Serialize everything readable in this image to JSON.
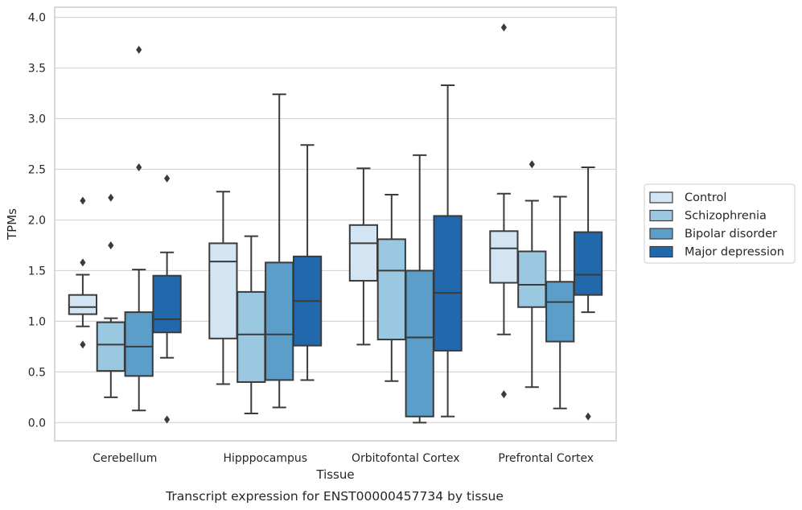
{
  "caption": "Transcript expression for ENST00000457734 by tissue",
  "chart_data": {
    "type": "box",
    "xlabel": "Tissue",
    "ylabel": "TPMs",
    "ylim": [
      -0.18,
      4.1
    ],
    "yticks": [
      "0.0",
      "0.5",
      "1.0",
      "1.5",
      "2.0",
      "2.5",
      "3.0",
      "3.5",
      "4.0"
    ],
    "grid": true,
    "legend_position": "right",
    "categories": [
      "Cerebellum",
      "Hipppocampus",
      "Orbitofontal Cortex",
      "Prefrontal Cortex"
    ],
    "series": [
      {
        "name": "Control",
        "color": "#d3e4f3",
        "boxes": [
          {
            "whislo": 0.95,
            "q1": 1.07,
            "med": 1.14,
            "q3": 1.26,
            "whishi": 1.46,
            "fliers": [
              2.19,
              1.58,
              0.77
            ]
          },
          {
            "whislo": 0.38,
            "q1": 0.83,
            "med": 1.59,
            "q3": 1.77,
            "whishi": 2.28,
            "fliers": []
          },
          {
            "whislo": 0.77,
            "q1": 1.4,
            "med": 1.77,
            "q3": 1.95,
            "whishi": 2.51,
            "fliers": []
          },
          {
            "whislo": 0.87,
            "q1": 1.38,
            "med": 1.72,
            "q3": 1.89,
            "whishi": 2.26,
            "fliers": [
              3.9,
              0.28
            ]
          }
        ]
      },
      {
        "name": "Schizophrenia",
        "color": "#9ac8e0",
        "boxes": [
          {
            "whislo": 0.25,
            "q1": 0.51,
            "med": 0.77,
            "q3": 0.99,
            "whishi": 1.03,
            "fliers": [
              2.22,
              1.75
            ]
          },
          {
            "whislo": 0.09,
            "q1": 0.4,
            "med": 0.87,
            "q3": 1.29,
            "whishi": 1.84,
            "fliers": []
          },
          {
            "whislo": 0.41,
            "q1": 0.82,
            "med": 1.5,
            "q3": 1.81,
            "whishi": 2.25,
            "fliers": []
          },
          {
            "whislo": 0.35,
            "q1": 1.14,
            "med": 1.36,
            "q3": 1.69,
            "whishi": 2.19,
            "fliers": [
              2.55
            ]
          }
        ]
      },
      {
        "name": "Bipolar disorder",
        "color": "#5a9ec9",
        "boxes": [
          {
            "whislo": 0.12,
            "q1": 0.46,
            "med": 0.75,
            "q3": 1.09,
            "whishi": 1.51,
            "fliers": [
              3.68,
              2.52
            ]
          },
          {
            "whislo": 0.15,
            "q1": 0.42,
            "med": 0.87,
            "q3": 1.58,
            "whishi": 3.24,
            "fliers": []
          },
          {
            "whislo": 0.0,
            "q1": 0.06,
            "med": 0.84,
            "q3": 1.5,
            "whishi": 2.64,
            "fliers": []
          },
          {
            "whislo": 0.14,
            "q1": 0.8,
            "med": 1.19,
            "q3": 1.39,
            "whishi": 2.23,
            "fliers": []
          }
        ]
      },
      {
        "name": "Major depression",
        "color": "#2268ac",
        "boxes": [
          {
            "whislo": 0.64,
            "q1": 0.89,
            "med": 1.02,
            "q3": 1.45,
            "whishi": 1.68,
            "fliers": [
              2.41,
              0.03
            ]
          },
          {
            "whislo": 0.42,
            "q1": 0.76,
            "med": 1.2,
            "q3": 1.64,
            "whishi": 2.74,
            "fliers": []
          },
          {
            "whislo": 0.06,
            "q1": 0.71,
            "med": 1.28,
            "q3": 2.04,
            "whishi": 3.33,
            "fliers": []
          },
          {
            "whislo": 1.09,
            "q1": 1.26,
            "med": 1.46,
            "q3": 1.88,
            "whishi": 2.52,
            "fliers": [
              0.06
            ]
          }
        ]
      }
    ]
  }
}
